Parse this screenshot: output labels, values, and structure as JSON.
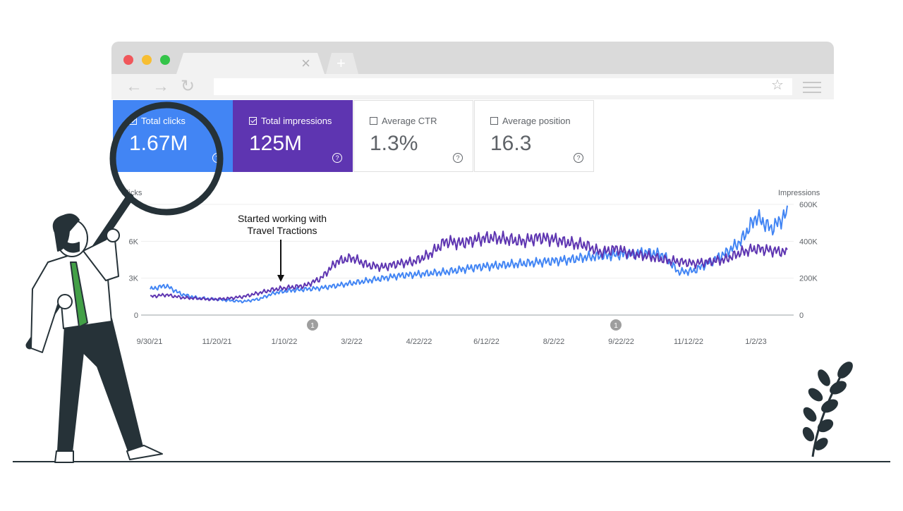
{
  "browser": {
    "tab_close": "×",
    "new_tab": "+",
    "back": "←",
    "forward": "→",
    "reload": "↻",
    "star": "☆"
  },
  "metrics": [
    {
      "label": "Total clicks",
      "value": "1.67M",
      "checked": true,
      "color": "#4285f4"
    },
    {
      "label": "Total impressions",
      "value": "125M",
      "checked": true,
      "color": "#5e35b1"
    },
    {
      "label": "Average CTR",
      "value": "1.3%",
      "checked": false
    },
    {
      "label": "Average position",
      "value": "16.3",
      "checked": false
    }
  ],
  "annotation": {
    "line1": "Started working with",
    "line2": "Travel Tractions"
  },
  "chart_data": {
    "type": "line",
    "left_axis_label": "Clicks",
    "right_axis_label": "Impressions",
    "left_ticks": [
      "0",
      "3K",
      "6K"
    ],
    "right_ticks": [
      "0",
      "200K",
      "400K",
      "600K"
    ],
    "x_labels": [
      "9/30/21",
      "11/20/21",
      "1/10/22",
      "3/2/22",
      "4/22/22",
      "6/12/22",
      "8/2/22",
      "9/22/22",
      "11/12/22",
      "1/2/23"
    ],
    "markers": [
      "1",
      "1"
    ],
    "series": [
      {
        "name": "Clicks",
        "color": "#4285f4",
        "values": [
          2100,
          2400,
          1700,
          1400,
          1300,
          1200,
          1100,
          1300,
          1800,
          2000,
          2100,
          2200,
          2400,
          2600,
          2800,
          3000,
          3200,
          3300,
          3400,
          3500,
          3700,
          3900,
          4000,
          4100,
          4200,
          4300,
          4400,
          4500,
          4700,
          4800,
          4900,
          5000,
          5100,
          4900,
          3500,
          3600,
          4300,
          5000,
          6000,
          8000,
          7000,
          8300
        ]
      },
      {
        "name": "Impressions",
        "color": "#5e35b1",
        "values": [
          100000,
          110000,
          95000,
          90000,
          85000,
          90000,
          100000,
          120000,
          140000,
          150000,
          160000,
          200000,
          290000,
          310000,
          270000,
          260000,
          280000,
          290000,
          330000,
          400000,
          390000,
          410000,
          420000,
          410000,
          400000,
          420000,
          410000,
          390000,
          380000,
          340000,
          360000,
          330000,
          320000,
          300000,
          290000,
          280000,
          290000,
          300000,
          340000,
          360000,
          350000,
          340000
        ]
      }
    ]
  },
  "colors": {
    "clicks": "#4285f4",
    "impressions": "#5e35b1",
    "dark": "#263238",
    "tie": "#43a047"
  }
}
